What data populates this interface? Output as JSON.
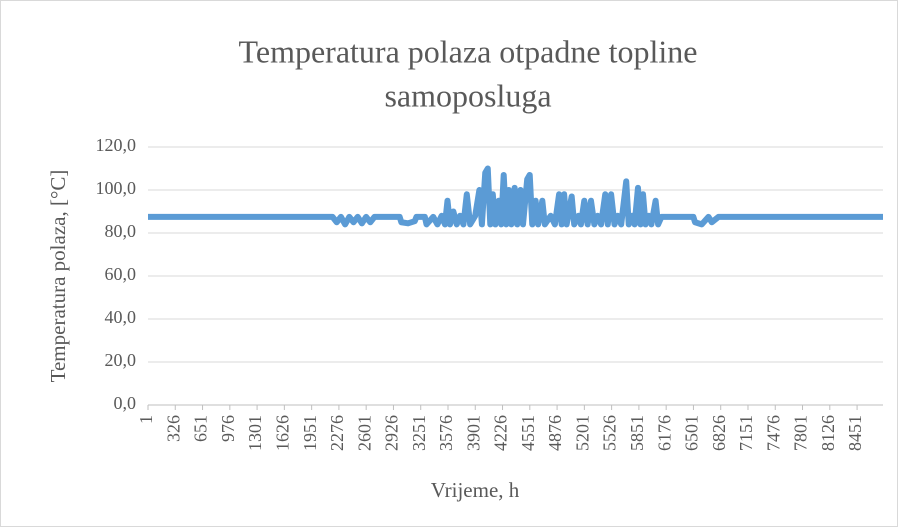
{
  "chart_data": {
    "type": "line",
    "title": [
      "Temperatura polaza otpadne topline",
      "samoposluga"
    ],
    "xlabel": "Vrijeme, h",
    "ylabel": "Temperatura polaza,  [°C]",
    "series": [
      {
        "name": "Temperatura polaza",
        "color": "#5b9bd5",
        "x": [
          1,
          2200,
          2250,
          2300,
          2350,
          2400,
          2450,
          2500,
          2550,
          2600,
          2650,
          2700,
          3000,
          3020,
          3100,
          3180,
          3200,
          3300,
          3320,
          3400,
          3450,
          3500,
          3540,
          3570,
          3600,
          3640,
          3680,
          3720,
          3760,
          3800,
          3840,
          3900,
          3950,
          3980,
          4020,
          4050,
          4080,
          4110,
          4140,
          4180,
          4210,
          4240,
          4270,
          4300,
          4330,
          4370,
          4400,
          4440,
          4470,
          4520,
          4550,
          4580,
          4620,
          4650,
          4700,
          4730,
          4800,
          4850,
          4900,
          4930,
          4960,
          4990,
          5050,
          5080,
          5130,
          5160,
          5200,
          5240,
          5280,
          5320,
          5360,
          5400,
          5450,
          5480,
          5520,
          5560,
          5600,
          5640,
          5700,
          5730,
          5770,
          5800,
          5840,
          5870,
          5900,
          5930,
          5970,
          6000,
          6050,
          6080,
          6120,
          6500,
          6520,
          6600,
          6680,
          6720,
          6800,
          8760
        ],
        "values": [
          87.5,
          87.5,
          85,
          87.5,
          84,
          87.5,
          85,
          87.5,
          84.5,
          87.5,
          85,
          87.5,
          87.5,
          85,
          84.5,
          85.5,
          87.5,
          87.5,
          84,
          87.5,
          84,
          88,
          84,
          95,
          84,
          90,
          84,
          88,
          84,
          98,
          84,
          88,
          100,
          84,
          108,
          110,
          84,
          98,
          84,
          95,
          84,
          107,
          84,
          100,
          84,
          101,
          84,
          100,
          84,
          105,
          107,
          84,
          95,
          84,
          95,
          84,
          88,
          84,
          98,
          84,
          98,
          84,
          97,
          84,
          88,
          84,
          95,
          84,
          95,
          84,
          88,
          84,
          98,
          84,
          98,
          84,
          88,
          84,
          104,
          84,
          88,
          84,
          101,
          84,
          98,
          84,
          88,
          84,
          95,
          84,
          87.5,
          87.5,
          85,
          84,
          87.5,
          85,
          87.5,
          87.5
        ]
      }
    ],
    "xlim": [
      1,
      8760
    ],
    "xticks": [
      1,
      326,
      651,
      976,
      1301,
      1626,
      1951,
      2276,
      2601,
      2926,
      3251,
      3576,
      3901,
      4226,
      4551,
      4876,
      5201,
      5526,
      5851,
      6176,
      6501,
      6826,
      7151,
      7476,
      7801,
      8126,
      8451
    ],
    "ylim": [
      0,
      120
    ],
    "yticks": [
      {
        "value": 0,
        "label": "0,0"
      },
      {
        "value": 20,
        "label": "20,0"
      },
      {
        "value": 40,
        "label": "40,0"
      },
      {
        "value": 60,
        "label": "60,0"
      },
      {
        "value": 80,
        "label": "80,0"
      },
      {
        "value": 100,
        "label": "100,0"
      },
      {
        "value": 120,
        "label": "120,0"
      }
    ],
    "grid": true
  }
}
